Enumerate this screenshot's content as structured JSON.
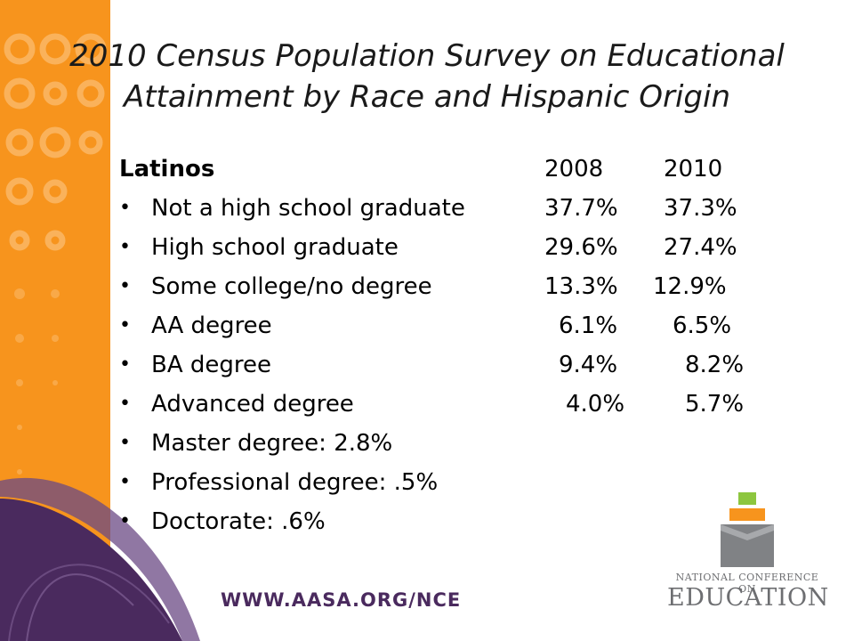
{
  "title": {
    "line1": "2010 Census Population Survey on Educational",
    "line2": "Attainment by Race and Hispanic Origin"
  },
  "table": {
    "header": {
      "label": "Latinos",
      "col1": "2008",
      "col2": "2010"
    },
    "rows": [
      {
        "label": "Not a high school graduate",
        "v1": "37.7%",
        "v2": "37.3%"
      },
      {
        "label": "High school graduate",
        "v1": "29.6%",
        "v2": "27.4%"
      },
      {
        "label": "Some college/no degree",
        "v1": "13.3%",
        "v2": "12.9%"
      },
      {
        "label": "AA degree",
        "v1": "6.1%",
        "v2": "6.5%"
      },
      {
        "label": "BA degree",
        "v1": "9.4%",
        "v2": "8.2%"
      },
      {
        "label": "Advanced degree",
        "v1": "4.0%",
        "v2": "5.7%"
      },
      {
        "label": "Master degree: 2.8%"
      },
      {
        "label": "Professional degree: .5%"
      },
      {
        "label": "Doctorate: .6%"
      }
    ]
  },
  "footer": {
    "url": "WWW.AASA.ORG/NCE"
  },
  "logo": {
    "line1": "NATIONAL CONFERENCE ON",
    "line2": "EDUCATION"
  },
  "colors": {
    "band": "#f7941d",
    "purple": "#4a2a5e",
    "logo_green": "#8dc63f",
    "logo_orange": "#f7941d",
    "logo_gray": "#808285"
  }
}
